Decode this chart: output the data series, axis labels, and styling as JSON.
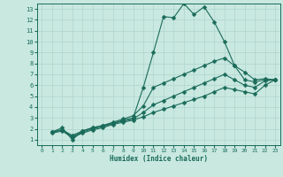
{
  "xlabel": "Humidex (Indice chaleur)",
  "ylabel": "",
  "background_color": "#c8e8e0",
  "grid_color": "#b0d4cc",
  "line_color": "#1a6b5a",
  "xlim": [
    -0.5,
    23.5
  ],
  "ylim": [
    0.5,
    13.5
  ],
  "xticks": [
    0,
    1,
    2,
    3,
    4,
    5,
    6,
    7,
    8,
    9,
    10,
    11,
    12,
    13,
    14,
    15,
    16,
    17,
    18,
    19,
    20,
    21,
    22,
    23
  ],
  "yticks": [
    1,
    2,
    3,
    4,
    5,
    6,
    7,
    8,
    9,
    10,
    11,
    12,
    13
  ],
  "series": [
    {
      "x": [
        1,
        2,
        3,
        4,
        5,
        6,
        7,
        8,
        9,
        10,
        11,
        12,
        13,
        14,
        15,
        16,
        17,
        18,
        19,
        20,
        21,
        22,
        23
      ],
      "y": [
        1.7,
        2.1,
        1.0,
        1.8,
        2.1,
        2.3,
        2.5,
        2.8,
        3.0,
        5.8,
        9.0,
        12.3,
        12.2,
        13.5,
        12.5,
        13.2,
        11.8,
        10.0,
        7.8,
        6.5,
        6.3,
        6.5,
        6.5
      ],
      "marker": "D",
      "markersize": 2.5
    },
    {
      "x": [
        1,
        2,
        3,
        4,
        5,
        6,
        7,
        8,
        9,
        10,
        11,
        12,
        13,
        14,
        15,
        16,
        17,
        18,
        19,
        20,
        21,
        22,
        23
      ],
      "y": [
        1.7,
        1.9,
        1.4,
        1.8,
        2.1,
        2.3,
        2.6,
        2.9,
        3.2,
        4.1,
        5.8,
        6.2,
        6.6,
        7.0,
        7.4,
        7.8,
        8.2,
        8.5,
        7.8,
        7.2,
        6.5,
        6.6,
        6.5
      ],
      "marker": "D",
      "markersize": 2.5
    },
    {
      "x": [
        1,
        2,
        3,
        4,
        5,
        6,
        7,
        8,
        9,
        10,
        11,
        12,
        13,
        14,
        15,
        16,
        17,
        18,
        19,
        20,
        21,
        22,
        23
      ],
      "y": [
        1.7,
        1.9,
        1.3,
        1.7,
        2.0,
        2.2,
        2.5,
        2.7,
        2.9,
        3.5,
        4.2,
        4.6,
        5.0,
        5.4,
        5.8,
        6.2,
        6.6,
        7.0,
        6.5,
        6.0,
        5.8,
        6.4,
        6.5
      ],
      "marker": "D",
      "markersize": 2.5
    },
    {
      "x": [
        1,
        2,
        3,
        4,
        5,
        6,
        7,
        8,
        9,
        10,
        11,
        12,
        13,
        14,
        15,
        16,
        17,
        18,
        19,
        20,
        21,
        22,
        23
      ],
      "y": [
        1.6,
        1.8,
        1.2,
        1.6,
        1.9,
        2.1,
        2.4,
        2.6,
        2.8,
        3.1,
        3.5,
        3.8,
        4.1,
        4.4,
        4.7,
        5.0,
        5.4,
        5.8,
        5.6,
        5.4,
        5.2,
        6.0,
        6.5
      ],
      "marker": "D",
      "markersize": 2.5
    }
  ]
}
